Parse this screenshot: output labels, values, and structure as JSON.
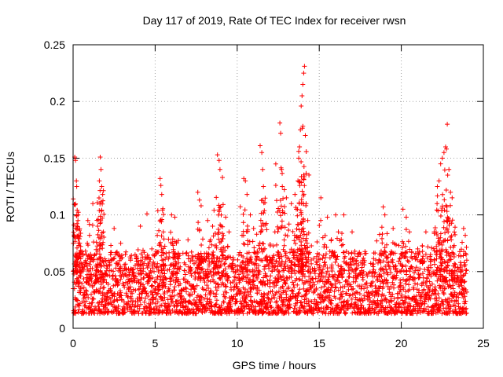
{
  "chart_data": {
    "type": "scatter",
    "title": "Day 117 of 2019, Rate Of TEC Index for receiver rwsn",
    "xlabel": "GPS time / hours",
    "ylabel": "ROTI / TECUs",
    "xlim": [
      0,
      24
    ],
    "ylim": [
      0,
      0.25
    ],
    "x_ticks": [
      0,
      5,
      10,
      15,
      20
    ],
    "x_tick_labels": [
      "0",
      "5",
      "10",
      "15",
      "20"
    ],
    "x_tick_last": 25,
    "x_tick_last_label": "25",
    "y_ticks": [
      0,
      0.05,
      0.1,
      0.15,
      0.2,
      0.25
    ],
    "y_tick_labels": [
      "0",
      "0.05",
      "0.1",
      "0.15",
      "0.2",
      "0.25"
    ],
    "grid": true,
    "marker": "+",
    "color": "#ff0000",
    "series": [
      {
        "name": "ROTI",
        "points": [
          [
            0.1,
            0.151
          ],
          [
            0.15,
            0.148
          ],
          [
            0.2,
            0.13
          ],
          [
            0.22,
            0.125
          ],
          [
            0.25,
            0.104
          ],
          [
            0.3,
            0.1
          ],
          [
            0.35,
            0.082
          ],
          [
            0.4,
            0.075
          ],
          [
            0.9,
            0.095
          ],
          [
            1.0,
            0.082
          ],
          [
            1.2,
            0.11
          ],
          [
            1.5,
            0.09
          ],
          [
            1.6,
            0.13
          ],
          [
            1.65,
            0.151
          ],
          [
            1.7,
            0.14
          ],
          [
            1.75,
            0.125
          ],
          [
            1.8,
            0.118
          ],
          [
            1.85,
            0.085
          ],
          [
            2.5,
            0.088
          ],
          [
            2.9,
            0.075
          ],
          [
            3.5,
            0.06
          ],
          [
            4.1,
            0.09
          ],
          [
            4.5,
            0.101
          ],
          [
            4.8,
            0.07
          ],
          [
            5.3,
            0.132
          ],
          [
            5.35,
            0.126
          ],
          [
            5.4,
            0.118
          ],
          [
            5.5,
            0.085
          ],
          [
            6.0,
            0.1
          ],
          [
            6.2,
            0.098
          ],
          [
            6.3,
            0.075
          ],
          [
            7.0,
            0.078
          ],
          [
            7.6,
            0.12
          ],
          [
            7.7,
            0.113
          ],
          [
            7.8,
            0.108
          ],
          [
            8.2,
            0.095
          ],
          [
            8.5,
            0.09
          ],
          [
            8.8,
            0.153
          ],
          [
            8.9,
            0.148
          ],
          [
            8.95,
            0.14
          ],
          [
            9.1,
            0.133
          ],
          [
            9.3,
            0.098
          ],
          [
            9.5,
            0.085
          ],
          [
            10.1,
            0.065
          ],
          [
            10.4,
            0.132
          ],
          [
            10.5,
            0.13
          ],
          [
            10.6,
            0.118
          ],
          [
            10.8,
            0.1
          ],
          [
            11.0,
            0.088
          ],
          [
            11.4,
            0.161
          ],
          [
            11.5,
            0.155
          ],
          [
            11.55,
            0.14
          ],
          [
            11.6,
            0.125
          ],
          [
            11.8,
            0.087
          ],
          [
            12.3,
            0.085
          ],
          [
            12.6,
            0.181
          ],
          [
            12.65,
            0.172
          ],
          [
            12.7,
            0.14
          ],
          [
            12.75,
            0.125
          ],
          [
            13.0,
            0.115
          ],
          [
            13.3,
            0.11
          ],
          [
            13.6,
            0.105
          ],
          [
            13.7,
            0.13
          ],
          [
            13.75,
            0.15
          ],
          [
            13.8,
            0.16
          ],
          [
            13.85,
            0.175
          ],
          [
            13.9,
            0.196
          ],
          [
            13.95,
            0.205
          ],
          [
            14.0,
            0.215
          ],
          [
            14.05,
            0.225
          ],
          [
            14.1,
            0.231
          ],
          [
            14.15,
            0.17
          ],
          [
            14.2,
            0.11
          ],
          [
            14.3,
            0.095
          ],
          [
            15.1,
            0.115
          ],
          [
            15.5,
            0.098
          ],
          [
            16.0,
            0.1
          ],
          [
            16.5,
            0.1
          ],
          [
            17.0,
            0.085
          ],
          [
            17.5,
            0.065
          ],
          [
            18.5,
            0.077
          ],
          [
            18.9,
            0.107
          ],
          [
            19.0,
            0.1
          ],
          [
            19.5,
            0.088
          ],
          [
            20.1,
            0.105
          ],
          [
            20.3,
            0.098
          ],
          [
            20.5,
            0.085
          ],
          [
            21.0,
            0.07
          ],
          [
            21.5,
            0.085
          ],
          [
            22.0,
            0.085
          ],
          [
            22.2,
            0.125
          ],
          [
            22.3,
            0.13
          ],
          [
            22.4,
            0.145
          ],
          [
            22.5,
            0.15
          ],
          [
            22.6,
            0.155
          ],
          [
            22.7,
            0.16
          ],
          [
            22.75,
            0.158
          ],
          [
            22.8,
            0.18
          ],
          [
            22.9,
            0.14
          ],
          [
            23.0,
            0.12
          ],
          [
            23.1,
            0.115
          ],
          [
            23.5,
            0.064
          ],
          [
            23.8,
            0.088
          ],
          [
            23.9,
            0.082
          ]
        ],
        "dense_band": {
          "x_range": [
            0,
            24
          ],
          "y_low": 0.005,
          "y_high": 0.06,
          "note": "dense cluster of points between roughly 0.01 and 0.05 TECUs across the whole day"
        }
      }
    ]
  }
}
